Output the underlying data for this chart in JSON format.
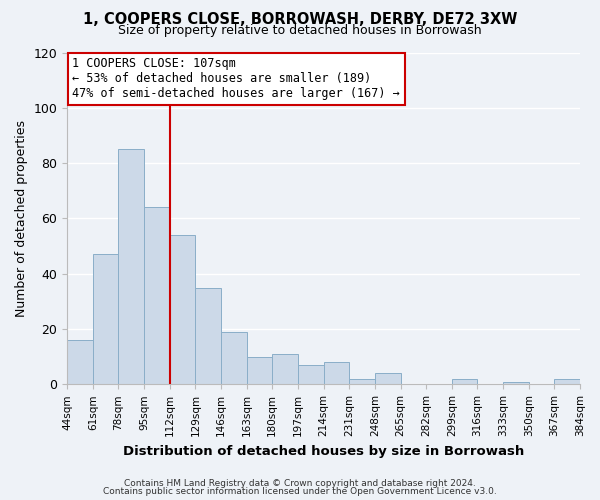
{
  "title": "1, COOPERS CLOSE, BORROWASH, DERBY, DE72 3XW",
  "subtitle": "Size of property relative to detached houses in Borrowash",
  "xlabel": "Distribution of detached houses by size in Borrowash",
  "ylabel": "Number of detached properties",
  "bar_color": "#ccd9e8",
  "bar_edge_color": "#8aaec8",
  "background_color": "#eef2f7",
  "grid_color": "#ffffff",
  "vline_color": "#cc0000",
  "annotation_title": "1 COOPERS CLOSE: 107sqm",
  "annotation_line1": "← 53% of detached houses are smaller (189)",
  "annotation_line2": "47% of semi-detached houses are larger (167) →",
  "annotation_box_color": "#ffffff",
  "annotation_box_edge": "#cc0000",
  "bin_edges": [
    44,
    61,
    78,
    95,
    112,
    129,
    146,
    163,
    180,
    197,
    214,
    231,
    248,
    265,
    282,
    299,
    316,
    333,
    350,
    367,
    384
  ],
  "bin_labels": [
    "44sqm",
    "61sqm",
    "78sqm",
    "95sqm",
    "112sqm",
    "129sqm",
    "146sqm",
    "163sqm",
    "180sqm",
    "197sqm",
    "214sqm",
    "231sqm",
    "248sqm",
    "265sqm",
    "282sqm",
    "299sqm",
    "316sqm",
    "333sqm",
    "350sqm",
    "367sqm",
    "384sqm"
  ],
  "counts": [
    16,
    47,
    85,
    64,
    54,
    35,
    19,
    10,
    11,
    7,
    8,
    2,
    4,
    0,
    0,
    2,
    0,
    1,
    0,
    2
  ],
  "ylim": [
    0,
    120
  ],
  "yticks": [
    0,
    20,
    40,
    60,
    80,
    100,
    120
  ],
  "footer_line1": "Contains HM Land Registry data © Crown copyright and database right 2024.",
  "footer_line2": "Contains public sector information licensed under the Open Government Licence v3.0."
}
